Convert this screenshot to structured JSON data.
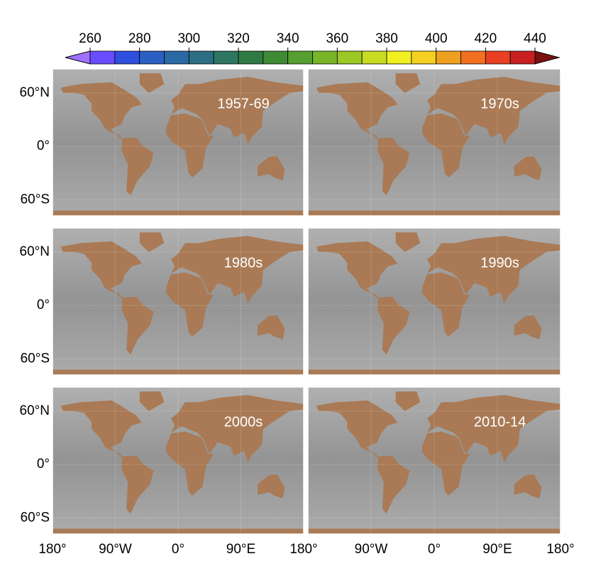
{
  "colorbar": {
    "lim": [
      260,
      440
    ],
    "ticks": [
      260,
      280,
      300,
      320,
      340,
      360,
      380,
      400,
      420,
      440
    ],
    "colors": [
      "#6a4cff",
      "#2f4fe0",
      "#2a5fc4",
      "#2a6aa4",
      "#2c6f84",
      "#2e7562",
      "#307a45",
      "#3f8a35",
      "#55a030",
      "#78b528",
      "#9cc825",
      "#c8dc22",
      "#f0f020",
      "#f5d020",
      "#f0a020",
      "#f07020",
      "#e84020",
      "#c82020"
    ],
    "under_color": "#a070ff",
    "over_color": "#7a1010"
  },
  "panels": [
    {
      "label": "1957-69"
    },
    {
      "label": "1970s"
    },
    {
      "label": "1980s"
    },
    {
      "label": "1990s"
    },
    {
      "label": "2000s"
    },
    {
      "label": "2010-14"
    }
  ],
  "map": {
    "lonlim": [
      -180,
      180
    ],
    "latlim": [
      -78,
      87
    ],
    "lonticks": [
      {
        "value": -180,
        "label": "180°"
      },
      {
        "value": -90,
        "label": "90°W"
      },
      {
        "value": 0,
        "label": "0°"
      },
      {
        "value": 90,
        "label": "90°E"
      },
      {
        "value": 180,
        "label": "180°"
      }
    ],
    "latticks": [
      {
        "value": 60,
        "label": "60°N"
      },
      {
        "value": 0,
        "label": "0°"
      },
      {
        "value": -60,
        "label": "60°S"
      }
    ],
    "land_color": "#a97a55",
    "ocean_color": "#9c9c9c"
  }
}
